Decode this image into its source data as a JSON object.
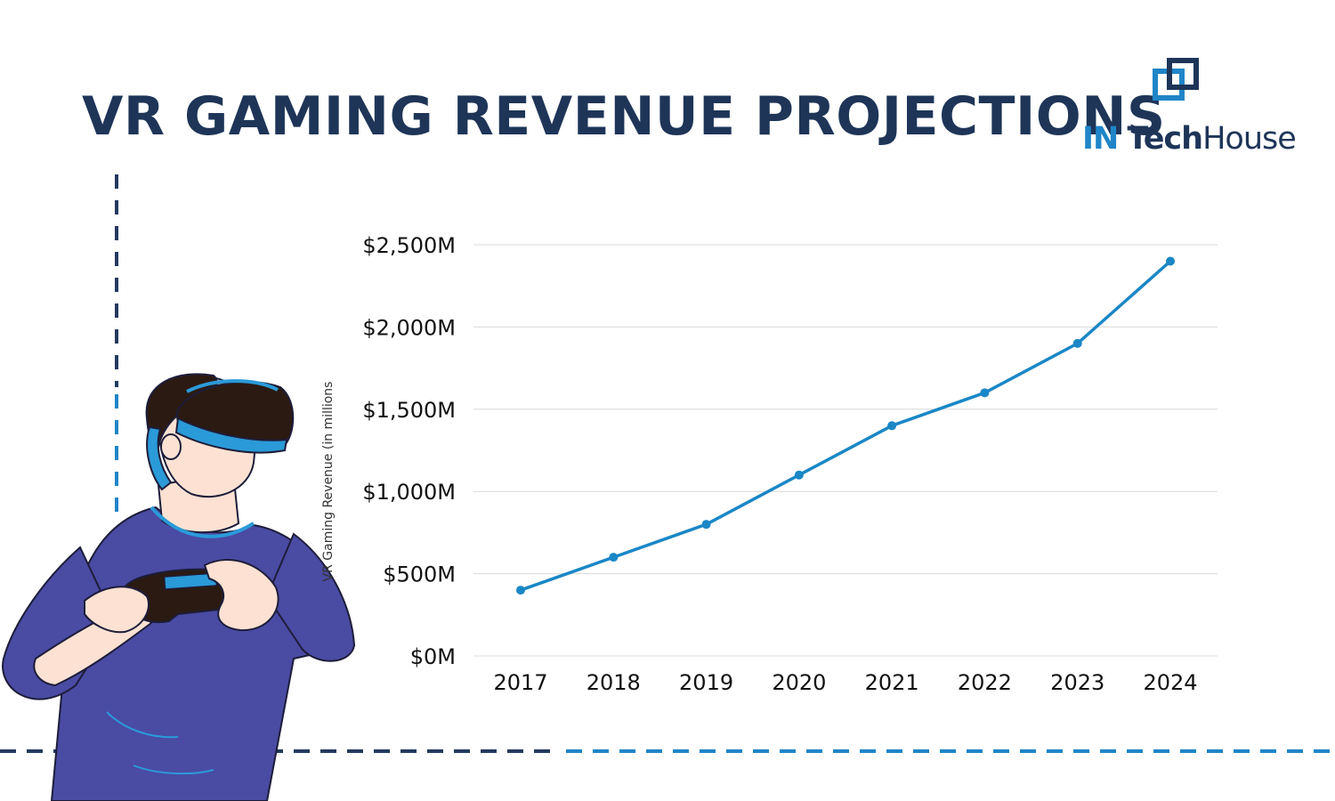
{
  "page": {
    "title": "VR GAMING REVENUE PROJECTIONS",
    "brand": {
      "part1": "IN",
      "part2": "Tech",
      "part3": "House"
    }
  },
  "colors": {
    "title": "#1e3558",
    "accent": "#1f85c8",
    "line": "#1a87c6",
    "grid": "#d9d9d9",
    "shirt": "#4a4ba3",
    "skin": "#fde2d3"
  },
  "icons": {
    "brand": "overlapping-squares-logo",
    "illustration": "person-with-vr-headset-and-gamepad"
  },
  "chart_data": {
    "type": "line",
    "title": "",
    "xlabel": "",
    "ylabel": "VR Gaming Revenue (in millions",
    "categories": [
      "2017",
      "2018",
      "2019",
      "2020",
      "2021",
      "2022",
      "2023",
      "2024"
    ],
    "series": [
      {
        "name": "VR Gaming Revenue",
        "values": [
          400,
          600,
          800,
          1100,
          1400,
          1600,
          1900,
          2400
        ]
      }
    ],
    "ylim": [
      0,
      2500
    ],
    "yticks": [
      0,
      500,
      1000,
      1500,
      2000,
      2500
    ],
    "ytick_labels": [
      "$0M",
      "$500M",
      "$1,000M",
      "$1,500M",
      "$2,000M",
      "$2,500M"
    ],
    "grid": true,
    "legend": "none"
  }
}
